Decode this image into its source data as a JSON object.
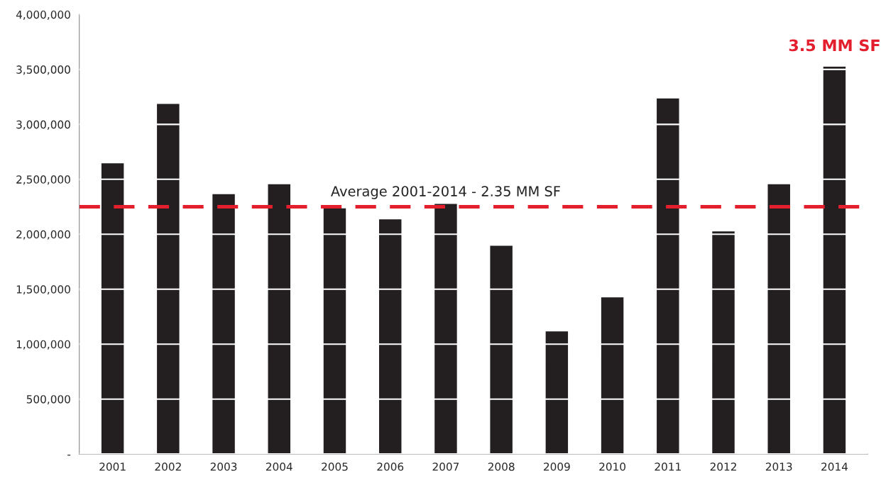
{
  "chart_data": {
    "type": "bar",
    "categories": [
      "2001",
      "2002",
      "2003",
      "2004",
      "2005",
      "2006",
      "2007",
      "2008",
      "2009",
      "2010",
      "2011",
      "2012",
      "2013",
      "2014"
    ],
    "values": [
      2650000,
      3190000,
      2370000,
      2460000,
      2240000,
      2140000,
      2280000,
      1900000,
      1120000,
      1430000,
      3240000,
      2030000,
      2460000,
      3530000
    ],
    "color": "#231f20",
    "ylim": [
      0,
      4000000
    ],
    "yticks": [
      {
        "value": 0,
        "label": "-"
      },
      {
        "value": 500000,
        "label": "500,000"
      },
      {
        "value": 1000000,
        "label": "1,000,000"
      },
      {
        "value": 1500000,
        "label": "1,500,000"
      },
      {
        "value": 2000000,
        "label": "2,000,000"
      },
      {
        "value": 2500000,
        "label": "2,500,000"
      },
      {
        "value": 3000000,
        "label": "3,000,000"
      },
      {
        "value": 3500000,
        "label": "3,500,000"
      },
      {
        "value": 4000000,
        "label": "4,000,000"
      }
    ],
    "grid": "y",
    "ref_lines": [
      {
        "axis": "y",
        "value": 2250000,
        "label": "Average 2001-2014 - 2.35 MM SF",
        "color": "#e31e2d",
        "line_style": "dashed"
      }
    ],
    "annotations": [
      {
        "text": "3.5 MM SF",
        "x": "2014",
        "y": 3530000
      }
    ]
  }
}
